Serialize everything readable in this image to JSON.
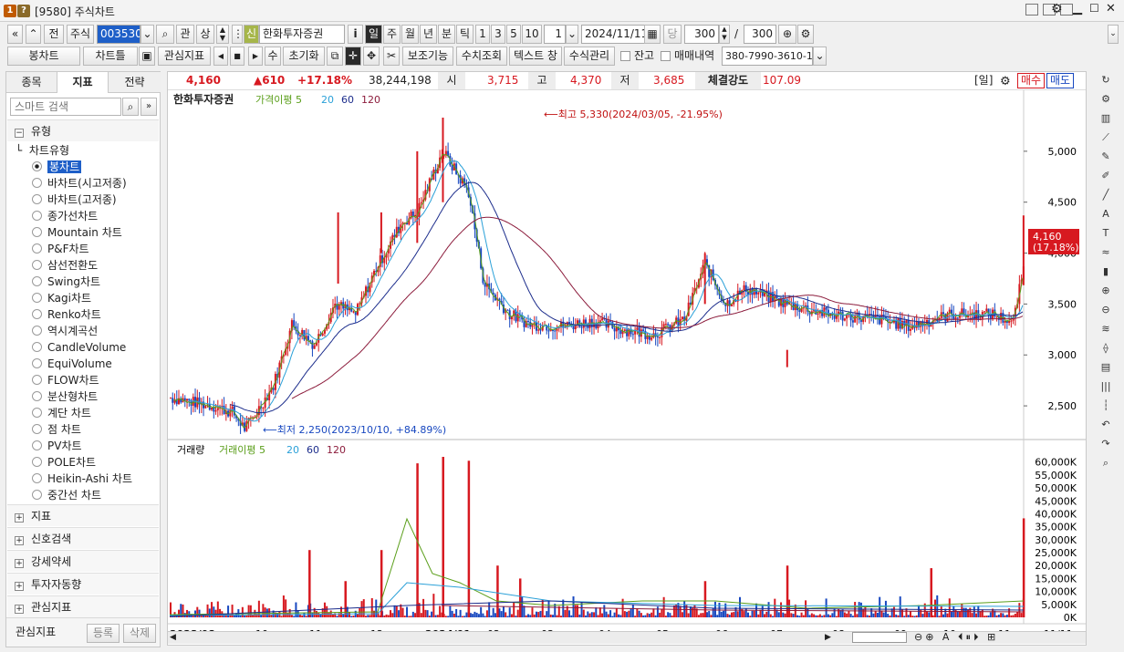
{
  "window": {
    "code": "[9580]",
    "title": "주식차트",
    "badge1": "1",
    "badge2": "?"
  },
  "toolbar1": {
    "code": "003530",
    "menu": "주식",
    "btn_prev": "전",
    "btn_gwan": "관",
    "btn_sang": "상",
    "sin": "신",
    "stock_name": "한화투자증권",
    "info": "i",
    "periods": [
      "일",
      "주",
      "월",
      "년",
      "분",
      "틱"
    ],
    "active_period": "일",
    "nums": [
      "1",
      "3",
      "5",
      "10"
    ],
    "interval": "1",
    "date": "2024/11/11",
    "dang": "당",
    "count1": "300",
    "slash": "/",
    "count2": "300"
  },
  "toolbar2": {
    "candle": "봉차트",
    "chart_type": "차트틀",
    "watch": "관심지표",
    "su": "수",
    "reset": "초기화",
    "aux": "보조기능",
    "value_view": "수치조회",
    "text_window": "텍스트 창",
    "formula": "수식관리",
    "balance": "잔고",
    "trade_history": "매매내역",
    "account": "380-7990-3610-1"
  },
  "tabs": [
    "종목",
    "지표",
    "전략"
  ],
  "active_tab": "지표",
  "search": {
    "placeholder": "스마트 검색"
  },
  "tree": {
    "section": "유형",
    "group": "차트유형",
    "items": [
      "봉차트",
      "바차트(시고저종)",
      "바차트(고저종)",
      "종가선차트",
      "Mountain 차트",
      "P&F차트",
      "삼선전환도",
      "Swing차트",
      "Kagi차트",
      "Renko차트",
      "역시계곡선",
      "CandleVolume",
      "EquiVolume",
      "FLOW차트",
      "분산형차트",
      "계단 차트",
      "점 차트",
      "PV차트",
      "POLE차트",
      "Heikin-Ashi 차트",
      "중간선 차트"
    ],
    "selected": "봉차트",
    "sections": [
      "지표",
      "신호검색",
      "강세약세",
      "투자자동향",
      "관심지표"
    ]
  },
  "bottom_left": {
    "label": "관심지표",
    "register": "등록",
    "delete": "삭제"
  },
  "quote": {
    "price": "4,160",
    "change": "▲610",
    "pct": "+17.18%",
    "volume": "38,244,198",
    "open_lbl": "시",
    "open": "3,715",
    "high_lbl": "고",
    "high": "4,370",
    "low_lbl": "저",
    "low": "3,685",
    "strength_lbl": "체결강도",
    "strength": "107.09",
    "period": "[일]",
    "buy": "매수",
    "sell": "매도"
  },
  "legend_price": {
    "name": "한화투자증권",
    "ma_label": "가격이평",
    "ma": [
      "5",
      "20",
      "60",
      "120"
    ],
    "ma_colors": [
      "#5a9e1a",
      "#2aa0d8",
      "#1c2d8c",
      "#8c1c3c"
    ]
  },
  "legend_volume": {
    "name": "거래량",
    "ma_label": "거래이평",
    "ma": [
      "5",
      "20",
      "60",
      "120"
    ]
  },
  "annotations": {
    "high": "최고 5,330(2024/03/05, -21.95%)",
    "low": "최저 2,250(2023/10/10, +84.89%)",
    "last_price": "4,160",
    "last_pct": "(17.18%)"
  },
  "colors": {
    "up": "#d71920",
    "down": "#1848c0",
    "accent": "#d71920"
  },
  "chart_data": [
    {
      "type": "candlestick",
      "title": "한화투자증권",
      "ylim": [
        2250,
        5330
      ],
      "yticks": [
        "5,000",
        "4,500",
        "4,000",
        "3,500",
        "3,000",
        "2,500"
      ],
      "ytick_values": [
        5000,
        4500,
        4000,
        3500,
        3000,
        2500
      ],
      "x_labels": [
        "2023/08",
        "10",
        "11",
        "12",
        "2024/01",
        "02",
        "03",
        "04",
        "05",
        "06",
        "07",
        "08",
        "09",
        "10",
        "11",
        "11/11"
      ],
      "key_points": [
        {
          "date": "2023/08",
          "close": 2580
        },
        {
          "date": "2023/10/10",
          "low": 2250
        },
        {
          "date": "2023/12",
          "close": 3300
        },
        {
          "date": "2024/01",
          "close": 3500
        },
        {
          "date": "2024/02",
          "close": 4500
        },
        {
          "date": "2024/03/05",
          "high": 5330
        },
        {
          "date": "2024/04",
          "close": 3700
        },
        {
          "date": "2024/05",
          "close": 3300
        },
        {
          "date": "2024/06",
          "close": 3250
        },
        {
          "date": "2024/07",
          "close": 3200
        },
        {
          "date": "2024/07",
          "close": 3900
        },
        {
          "date": "2024/08",
          "low": 2880
        },
        {
          "date": "2024/09",
          "close": 3400
        },
        {
          "date": "2024/10",
          "close": 3350
        },
        {
          "date": "2024/11/11",
          "close": 4160,
          "high": 4370,
          "low": 3685,
          "open": 3715
        }
      ]
    },
    {
      "type": "bar",
      "title": "거래량",
      "yticks": [
        "60,000K",
        "55,000K",
        "50,000K",
        "45,000K",
        "40,000K",
        "35,000K",
        "30,000K",
        "25,000K",
        "20,000K",
        "15,000K",
        "10,000K",
        "5,000K",
        "0K"
      ],
      "ylim": [
        0,
        62000
      ],
      "last_volume_k": 38244
    }
  ]
}
